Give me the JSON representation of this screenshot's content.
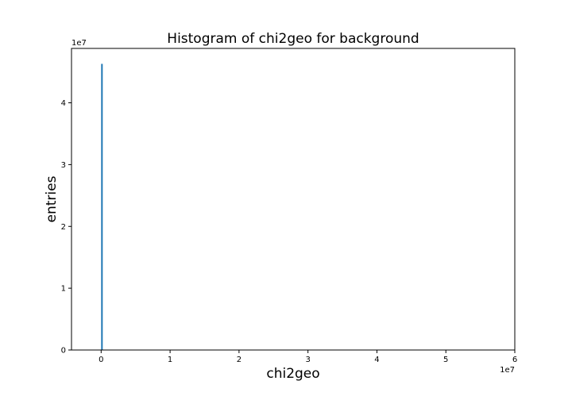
{
  "chart_data": {
    "type": "bar",
    "title": "Histogram of chi2geo for background",
    "xlabel": "chi2geo",
    "ylabel": "entries",
    "x_offset_label": "1e7",
    "y_offset_label": "1e7",
    "xlim": [
      -0.43,
      6.0
    ],
    "ylim": [
      0,
      4.88
    ],
    "x_ticks": [
      0,
      1,
      2,
      3,
      4,
      5,
      6
    ],
    "y_ticks": [
      0,
      1,
      2,
      3,
      4
    ],
    "grid": false,
    "bar_color": "#1f77b4",
    "bins": [
      {
        "x_start": 0.0,
        "x_end": 0.012,
        "value": 4.63
      }
    ]
  }
}
